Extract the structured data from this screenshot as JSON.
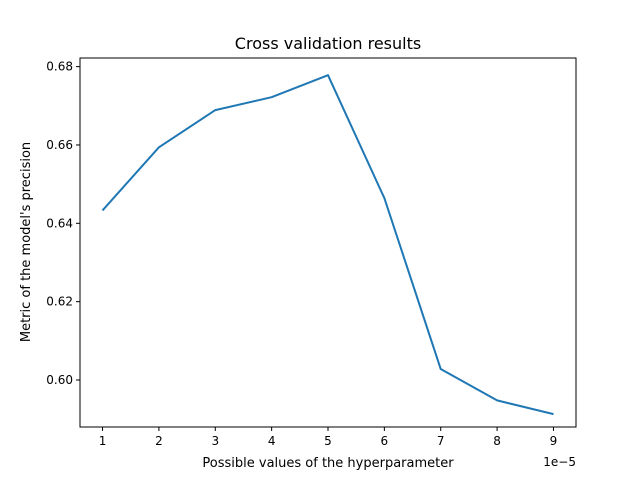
{
  "chart_data": {
    "type": "line",
    "title": "Cross validation results",
    "xlabel": "Possible values of the hyperparameter",
    "ylabel": "Metric of the model's precision",
    "x_offset_label": "1e−5",
    "x": [
      1,
      2,
      3,
      4,
      5,
      6,
      7,
      8,
      9
    ],
    "x_tick_labels": [
      "1",
      "2",
      "3",
      "4",
      "5",
      "6",
      "7",
      "8",
      "9"
    ],
    "y_ticks": [
      0.6,
      0.62,
      0.64,
      0.66,
      0.68
    ],
    "y_tick_labels": [
      "0.60",
      "0.62",
      "0.64",
      "0.66",
      "0.68"
    ],
    "series": [
      {
        "values": [
          0.6433,
          0.6594,
          0.6689,
          0.6722,
          0.6778,
          0.6464,
          0.6028,
          0.5948,
          0.5913
        ],
        "color": "#1f77b4"
      }
    ],
    "xlim": [
      0.6,
      9.4
    ],
    "ylim": [
      0.588,
      0.6822
    ],
    "grid": false
  }
}
